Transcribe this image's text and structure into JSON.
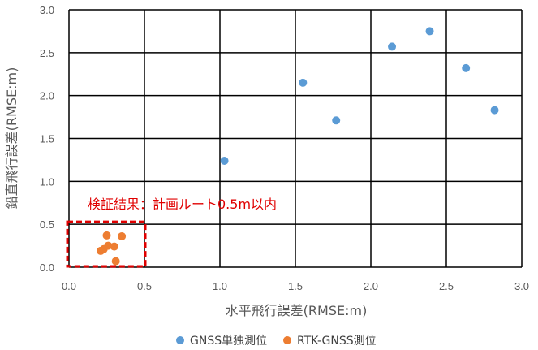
{
  "chart_data": {
    "type": "scatter",
    "xlabel": "水平飛行誤差(RMSE:m)",
    "ylabel": "鉛直飛行誤差(RMSE:m)",
    "xlim": [
      0,
      3.0
    ],
    "ylim": [
      0,
      3.0
    ],
    "x_ticks": [
      "0.0",
      "0.5",
      "1.0",
      "1.5",
      "2.0",
      "2.5",
      "3.0"
    ],
    "y_ticks": [
      "0.0",
      "0.5",
      "1.0",
      "1.5",
      "2.0",
      "2.5",
      "3.0"
    ],
    "grid": true,
    "legend_position": "bottom",
    "series": [
      {
        "name": "GNSS単独測位",
        "color": "#5b9bd5",
        "points": [
          {
            "x": 1.03,
            "y": 1.24
          },
          {
            "x": 1.55,
            "y": 2.15
          },
          {
            "x": 1.77,
            "y": 1.71
          },
          {
            "x": 2.14,
            "y": 2.57
          },
          {
            "x": 2.39,
            "y": 2.75
          },
          {
            "x": 2.63,
            "y": 2.32
          },
          {
            "x": 2.82,
            "y": 1.83
          }
        ]
      },
      {
        "name": "RTK-GNSS測位",
        "color": "#ed7d31",
        "points": [
          {
            "x": 0.25,
            "y": 0.37
          },
          {
            "x": 0.35,
            "y": 0.36
          },
          {
            "x": 0.26,
            "y": 0.25
          },
          {
            "x": 0.3,
            "y": 0.24
          },
          {
            "x": 0.23,
            "y": 0.21
          },
          {
            "x": 0.21,
            "y": 0.19
          },
          {
            "x": 0.31,
            "y": 0.07
          }
        ]
      }
    ],
    "annotations": [
      {
        "text": "検証結果：計画ルート0.5m以内",
        "color": "#e00000"
      }
    ],
    "highlight_region": {
      "x": [
        0,
        0.5
      ],
      "y": [
        0,
        0.5
      ],
      "style": "dashed",
      "color": "#e00000"
    }
  }
}
